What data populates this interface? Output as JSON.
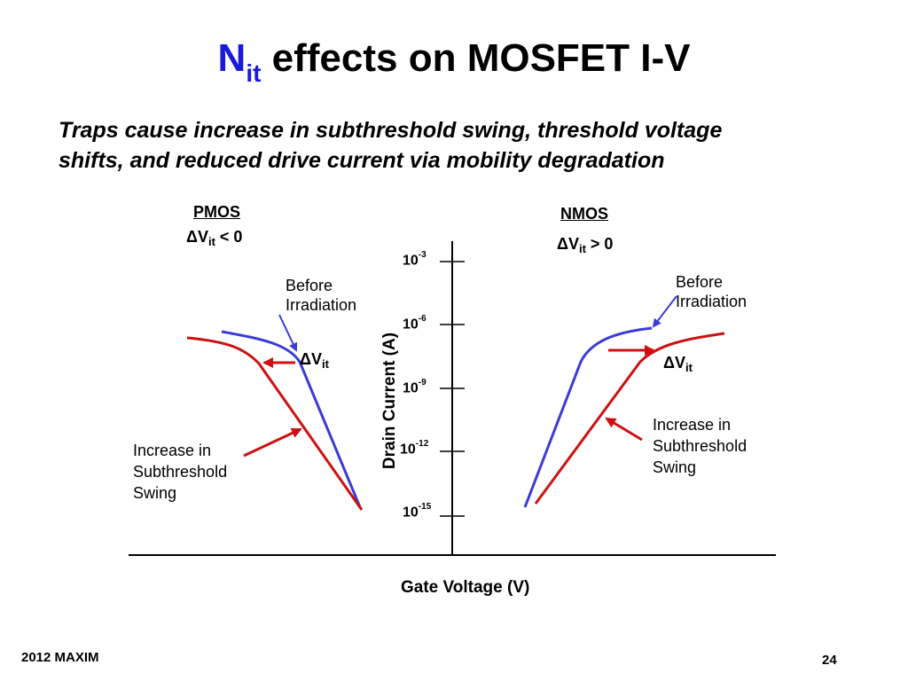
{
  "slide": {
    "title_symbol": "N",
    "title_symbol_sub": "it",
    "title_rest": " effects on MOSFET I-V",
    "subtitle_line1": "Traps cause increase in subthreshold swing, threshold voltage",
    "subtitle_line2": "shifts, and reduced drive current via mobility degradation",
    "footer_left": "2012 MAXIM",
    "page_number": "24"
  },
  "diagram": {
    "pmos": {
      "heading": "PMOS",
      "delta": "ΔV",
      "delta_sub": "it",
      "delta_cond": " < 0",
      "before_line1": "Before",
      "before_line2": "Irradiation",
      "shift_label": "ΔV",
      "shift_sub": "it",
      "swing_line1": "Increase in",
      "swing_line2": "Subthreshold",
      "swing_line3": "Swing"
    },
    "nmos": {
      "heading": "NMOS",
      "delta": "ΔV",
      "delta_sub": "it",
      "delta_cond": " > 0",
      "before_line1": "Before",
      "before_line2": "Irradiation",
      "shift_label": "ΔV",
      "shift_sub": "it",
      "swing_line1": "Increase in",
      "swing_line2": "Subthreshold",
      "swing_line3": "Swing"
    },
    "axes": {
      "y_label": "Drain Current (A)",
      "x_label": "Gate Voltage (V)",
      "ticks": [
        {
          "base": "10",
          "exp": "-3"
        },
        {
          "base": "10",
          "exp": "-6"
        },
        {
          "base": "10",
          "exp": "-9"
        },
        {
          "base": "10",
          "exp": "-12"
        },
        {
          "base": "10",
          "exp": "-15"
        }
      ]
    },
    "colors": {
      "before_curve": "#3b3bd6",
      "after_curve": "#cc1111",
      "title_accent": "#1a1adb"
    }
  }
}
